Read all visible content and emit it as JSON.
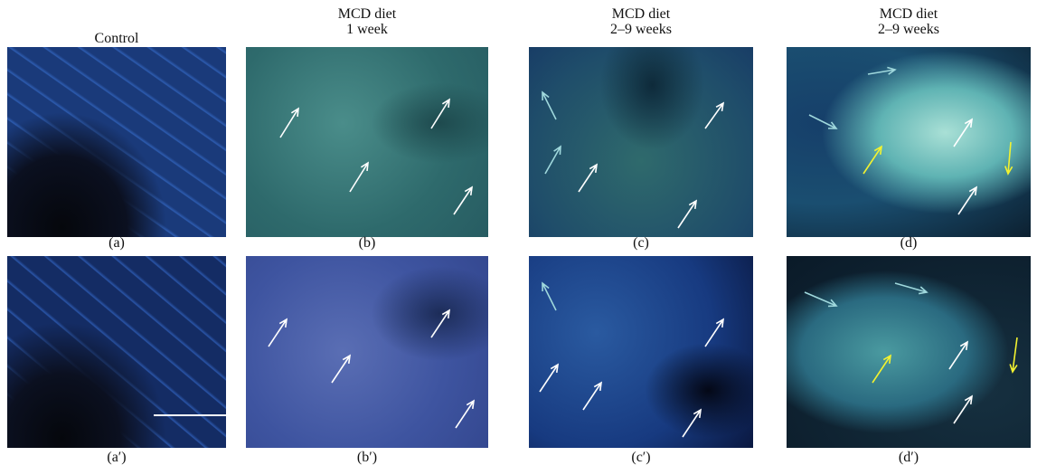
{
  "headers": [
    {
      "lines": [
        "Control"
      ]
    },
    {
      "lines": [
        "MCD diet",
        "1 week"
      ]
    },
    {
      "lines": [
        "MCD diet",
        "2–9 weeks"
      ]
    },
    {
      "lines": [
        "MCD diet",
        "2–9 weeks"
      ]
    }
  ],
  "labels": {
    "top": [
      "(a)",
      "(b)",
      "(c)",
      "(d)"
    ],
    "bottom": [
      "(a′)",
      "(b′)",
      "(c′)",
      "(d′)"
    ]
  }
}
